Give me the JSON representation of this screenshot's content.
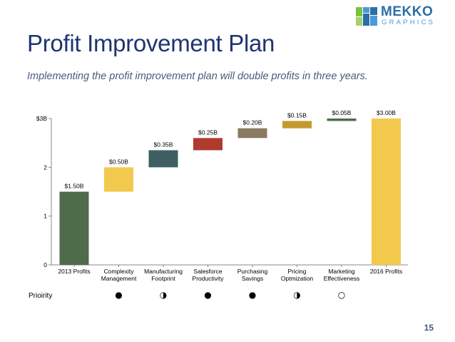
{
  "slide": {
    "title": "Profit Improvement Plan",
    "subtitle": "Implementing the profit improvement plan will double profits in three years.",
    "page_number": "15"
  },
  "logo": {
    "word": "MEKKO",
    "sub": "GRAPHICS",
    "colors": [
      "#7cc142",
      "#2a6fa8",
      "#4a9ad6",
      "#a4d36e"
    ]
  },
  "chart_data": {
    "type": "bar",
    "subtype": "waterfall",
    "categories": [
      "2013 Profits",
      "Complexity Management",
      "Manufacturing Footprint",
      "Salesforce Productivity",
      "Purchasing Savings",
      "Pricing Optmization",
      "Marketing Effectiveness",
      "2016 Profits"
    ],
    "category_lines": [
      [
        "2013 Profits"
      ],
      [
        "Complexity",
        "Management"
      ],
      [
        "Manufacturing",
        "Footprint"
      ],
      [
        "Salesforce",
        "Productivity"
      ],
      [
        "Purchasing",
        "Savings"
      ],
      [
        "Pricing",
        "Optmization"
      ],
      [
        "Marketing",
        "Effectiveness"
      ],
      [
        "2016 Profits"
      ]
    ],
    "values": [
      1.5,
      0.5,
      0.35,
      0.25,
      0.2,
      0.15,
      0.05,
      3.0
    ],
    "bar_kind": [
      "total",
      "increment",
      "increment",
      "increment",
      "increment",
      "increment",
      "increment",
      "total"
    ],
    "data_labels": [
      "$1.50B",
      "$0.50B",
      "$0.35B",
      "$0.25B",
      "$0.20B",
      "$0.15B",
      "$0.05B",
      "$3.00B"
    ],
    "colors": [
      "#4e6b4a",
      "#f2c94c",
      "#3f5f63",
      "#b03a2e",
      "#8a7a60",
      "#c49a2e",
      "#4e6b4a",
      "#f2c94c"
    ],
    "y_ticks": [
      "0",
      "1",
      "2",
      "$3B"
    ],
    "y_tick_values": [
      0,
      1,
      2,
      3
    ],
    "ylim": [
      0,
      3
    ],
    "grid": false,
    "legend": "none"
  },
  "priority": {
    "label": "Prioirity",
    "marks": [
      "",
      "●",
      "◑",
      "●",
      "●",
      "◑",
      "○",
      ""
    ]
  }
}
